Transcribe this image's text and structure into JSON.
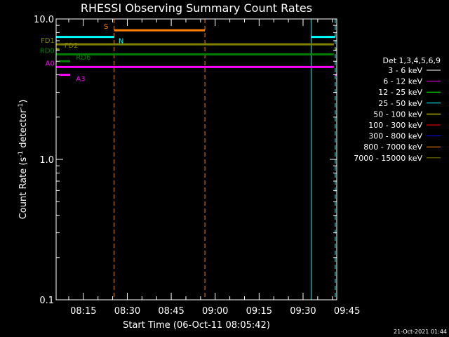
{
  "chart_data": {
    "type": "line",
    "title": "RHESSI Observing Summary Count Rates",
    "xlabel": "Start Time (06-Oct-11 08:05:42)",
    "ylabel_main": "Count Rate (s",
    "ylabel_sup1": "-1",
    "ylabel_mid": " detector",
    "ylabel_sup2": "-1",
    "ylabel_end": ")",
    "yscale": "log",
    "ylim": [
      0.1,
      10.0
    ],
    "y_ticks": [
      {
        "v": 0.1,
        "label": "0.1"
      },
      {
        "v": 1.0,
        "label": "1.0"
      },
      {
        "v": 10.0,
        "label": "10.0"
      }
    ],
    "xlim_min": [
      5.7,
      101.5
    ],
    "x_ticks": [
      {
        "t": 15,
        "label": "08:15"
      },
      {
        "t": 30,
        "label": "08:30"
      },
      {
        "t": 45,
        "label": "08:45"
      },
      {
        "t": 60,
        "label": "09:00"
      },
      {
        "t": 75,
        "label": "09:15"
      },
      {
        "t": 90,
        "label": "09:30"
      },
      {
        "t": 105,
        "label": "09:45"
      }
    ],
    "legend": {
      "placement": "right",
      "header": "Det 1,3,4,5,6,9",
      "entries": [
        {
          "label": "3 - 6 keV",
          "color": "#ffffff"
        },
        {
          "label": "6 - 12 keV",
          "color": "#ff00ff"
        },
        {
          "label": "12 - 25 keV",
          "color": "#00ff00"
        },
        {
          "label": "25 - 50 keV",
          "color": "#00ffff"
        },
        {
          "label": "50 - 100 keV",
          "color": "#ffff00"
        },
        {
          "label": "100 - 300 keV",
          "color": "#ff0000"
        },
        {
          "label": "300 - 800 keV",
          "color": "#0000ff"
        },
        {
          "label": "800 - 7000 keV",
          "color": "#ff8000"
        },
        {
          "label": "7000 - 15000 keV",
          "color": "#808000"
        }
      ]
    },
    "flag_bars": [
      {
        "name": "S",
        "color": "#ff8000",
        "y": 8.3,
        "segments": [
          [
            25.5,
            56.5
          ]
        ],
        "label_t": 23.5,
        "label_side": "left",
        "label_above": true
      },
      {
        "name": "N",
        "color": "#00ffff",
        "y": 7.45,
        "segments": [
          [
            5.7,
            25.5
          ],
          [
            92.8,
            101.0
          ]
        ],
        "label_t": 27,
        "label_side": "right",
        "label_above": false
      },
      {
        "name": "FD1",
        "color": "#808000",
        "y": 6.6,
        "segments": [
          [
            5.7,
            100.5
          ]
        ],
        "label_t": 5.2,
        "label_side": "left",
        "label_above": true
      },
      {
        "name": "FD2",
        "color": "#808000",
        "y": 6.1,
        "segments": [
          [
            5.7,
            6.8
          ],
          [
            101.0,
            101.5
          ]
        ],
        "label_t": 8.5,
        "label_side": "right",
        "label_above": true
      },
      {
        "name": "RD0",
        "color": "#008000",
        "y": 5.6,
        "segments": [
          [
            5.7,
            100.5
          ]
        ],
        "label_t": 5.2,
        "label_side": "left",
        "label_above": true
      },
      {
        "name": "RD6",
        "color": "#008000",
        "y": 5.0,
        "segments": [
          [
            6.8,
            10.5
          ]
        ],
        "label_t": 12.5,
        "label_side": "right",
        "label_above": true
      },
      {
        "name": "A0",
        "color": "#ff00ff",
        "y": 4.55,
        "segments": [
          [
            5.7,
            100.5
          ]
        ],
        "label_t": 5.2,
        "label_side": "left",
        "label_above": true
      },
      {
        "name": "A3",
        "color": "#ff00ff",
        "y": 4.0,
        "segments": [
          [
            6.8,
            10.5
          ],
          [
            101.0,
            101.5
          ]
        ],
        "label_t": 12.5,
        "label_side": "right",
        "label_above": false
      }
    ],
    "vlines": [
      {
        "t": 5.7,
        "color": "#00ffff",
        "style": "solid"
      },
      {
        "t": 25.5,
        "color": "#ff8000",
        "style": "dashed"
      },
      {
        "t": 56.5,
        "color": "#ff8000",
        "style": "dashed"
      },
      {
        "t": 92.8,
        "color": "#00ffff",
        "style": "solid"
      },
      {
        "t": 101.0,
        "color": "#00ffff",
        "style": "dashed"
      }
    ]
  },
  "footer": {
    "timestamp": "21-Oct-2021 01:44"
  }
}
